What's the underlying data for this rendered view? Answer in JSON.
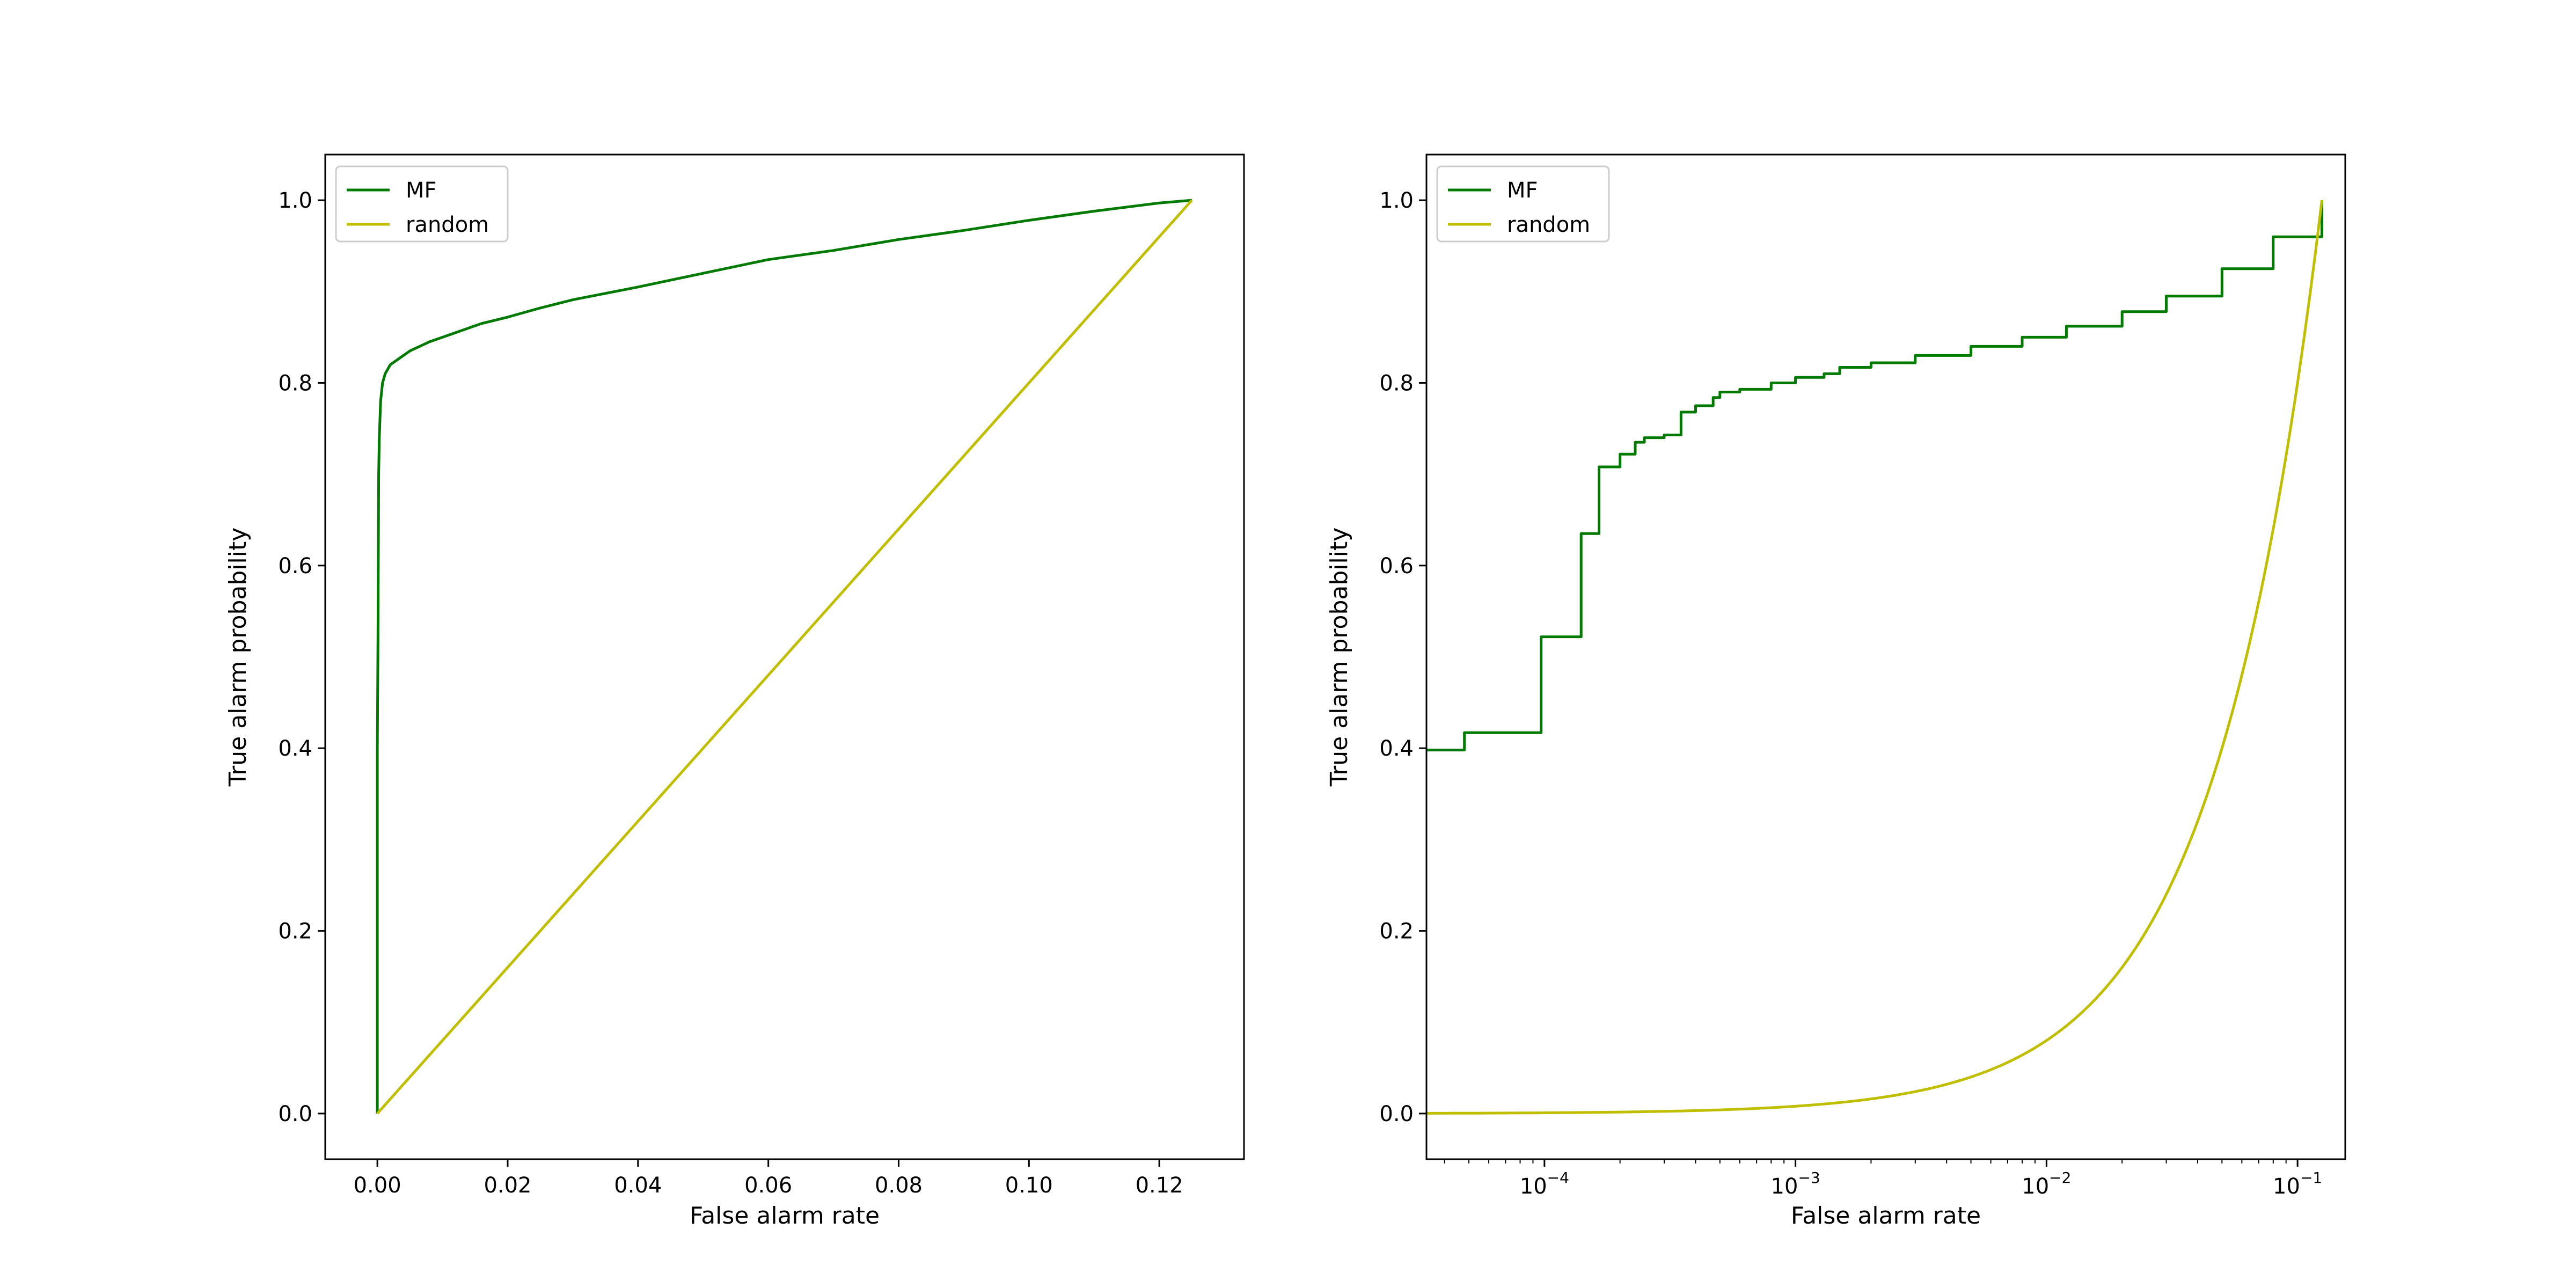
{
  "chart_data": [
    {
      "type": "line",
      "title": "",
      "xlabel": "False alarm rate",
      "ylabel": "True alarm probability",
      "xscale": "linear",
      "xlim": [
        -0.008,
        0.133
      ],
      "ylim": [
        -0.05,
        1.05
      ],
      "xticks": [
        0.0,
        0.02,
        0.04,
        0.06,
        0.08,
        0.1,
        0.12
      ],
      "xtick_labels": [
        "0.00",
        "0.02",
        "0.04",
        "0.06",
        "0.08",
        "0.10",
        "0.12"
      ],
      "yticks": [
        0.0,
        0.2,
        0.4,
        0.6,
        0.8,
        1.0
      ],
      "ytick_labels": [
        "0.0",
        "0.2",
        "0.4",
        "0.6",
        "0.8",
        "1.0"
      ],
      "legend_position": "top-left",
      "series": [
        {
          "name": "MF",
          "color": "#007a00",
          "x": [
            0,
            0,
            0.0001,
            0.0002,
            0.0003,
            0.0005,
            0.0008,
            0.0012,
            0.002,
            0.003,
            0.005,
            0.008,
            0.012,
            0.016,
            0.02,
            0.025,
            0.03,
            0.035,
            0.04,
            0.05,
            0.06,
            0.07,
            0.08,
            0.09,
            0.1,
            0.11,
            0.12,
            0.125
          ],
          "y": [
            0,
            0.4,
            0.52,
            0.7,
            0.74,
            0.78,
            0.8,
            0.81,
            0.82,
            0.825,
            0.835,
            0.845,
            0.855,
            0.865,
            0.872,
            0.882,
            0.891,
            0.898,
            0.905,
            0.92,
            0.935,
            0.945,
            0.957,
            0.967,
            0.978,
            0.988,
            0.997,
            1.0
          ]
        },
        {
          "name": "random",
          "color": "#bfbf00",
          "x": [
            0,
            0.125
          ],
          "y": [
            0,
            1.0
          ]
        }
      ]
    },
    {
      "type": "line",
      "title": "",
      "xlabel": "False alarm rate",
      "ylabel": "True alarm probability",
      "xscale": "log",
      "xlim_log10": [
        -4.47,
        -0.81
      ],
      "ylim": [
        -0.05,
        1.05
      ],
      "xticks_log10": [
        -4,
        -3,
        -2,
        -1
      ],
      "xtick_label_base": "10",
      "xtick_label_exponents": [
        "−4",
        "−3",
        "−2",
        "−1"
      ],
      "yticks": [
        0.0,
        0.2,
        0.4,
        0.6,
        0.8,
        1.0
      ],
      "ytick_labels": [
        "0.0",
        "0.2",
        "0.4",
        "0.6",
        "0.8",
        "1.0"
      ],
      "legend_position": "top-left",
      "series": [
        {
          "name": "MF",
          "color": "#007a00",
          "step": true,
          "x": [
            3e-05,
            4.8e-05,
            9.7e-05,
            0.00014,
            0.000165,
            0.0002,
            0.00023,
            0.00025,
            0.0003,
            0.00035,
            0.0004,
            0.00047,
            0.0005,
            0.0006,
            0.0008,
            0.001,
            0.0013,
            0.0015,
            0.002,
            0.003,
            0.005,
            0.008,
            0.012,
            0.02,
            0.03,
            0.05,
            0.08,
            0.125
          ],
          "y": [
            0.398,
            0.417,
            0.522,
            0.635,
            0.708,
            0.722,
            0.735,
            0.74,
            0.743,
            0.768,
            0.775,
            0.784,
            0.79,
            0.793,
            0.8,
            0.806,
            0.81,
            0.817,
            0.822,
            0.83,
            0.84,
            0.85,
            0.862,
            0.878,
            0.895,
            0.925,
            0.96,
            1.0
          ]
        },
        {
          "name": "random",
          "color": "#bfbf00",
          "function": "y = x / 0.125",
          "x_range": [
            3e-05,
            0.125
          ]
        }
      ]
    }
  ]
}
